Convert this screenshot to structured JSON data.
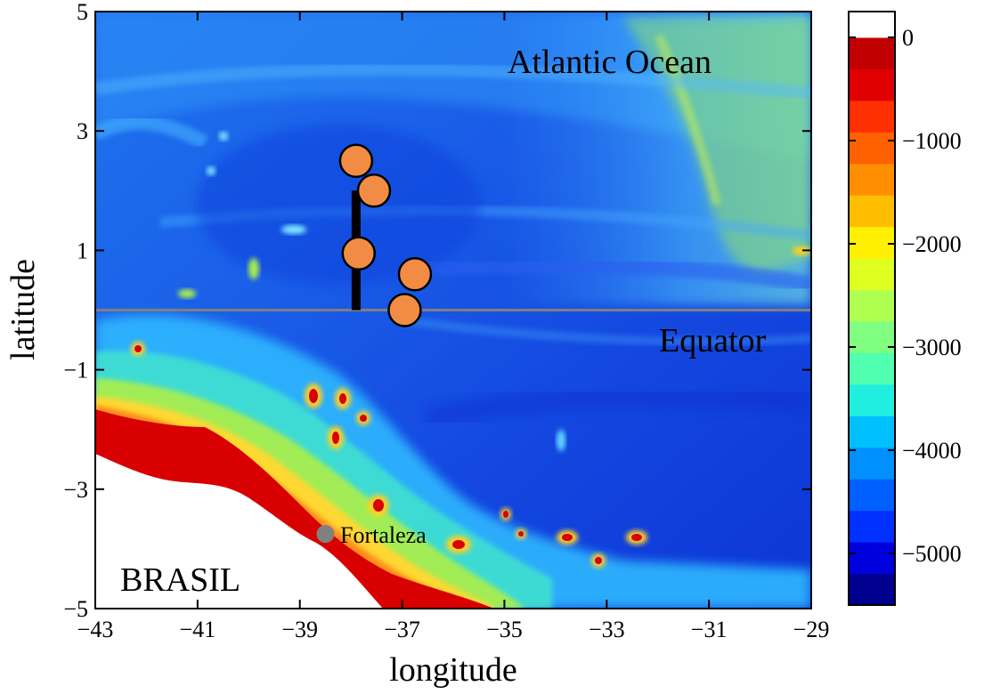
{
  "map": {
    "region": {
      "lon_range": [
        -43,
        -29
      ],
      "lat_range": [
        -5,
        5
      ]
    },
    "axes": {
      "xlabel": "longitude",
      "ylabel": "latitude",
      "xticks": [
        -43,
        -41,
        -39,
        -37,
        -35,
        -33,
        -31,
        -29
      ],
      "yticks": [
        -5,
        -3,
        -1,
        1,
        3,
        5
      ],
      "xtick_labels": [
        "−43",
        "−41",
        "−39",
        "−37",
        "−35",
        "−33",
        "−31",
        "−29"
      ],
      "ytick_labels": [
        "−5",
        "−3",
        "−1",
        "1",
        "3",
        "5"
      ]
    },
    "labels": {
      "ocean": "Atlantic Ocean",
      "equator": "Equator",
      "country": "BRASIL",
      "city": "Fortaleza"
    },
    "city_point": {
      "lon": -38.5,
      "lat": -3.75,
      "color": "#808080"
    },
    "equator_line": {
      "lat": 0,
      "color": "#7f7f7f"
    },
    "section_line": {
      "lon": -37.9,
      "lat_start": 0,
      "lat_end": 2.0,
      "color": "#000000"
    },
    "stations": [
      {
        "lon": -37.9,
        "lat": 2.5
      },
      {
        "lon": -37.55,
        "lat": 2.0
      },
      {
        "lon": -37.85,
        "lat": 0.95
      },
      {
        "lon": -36.75,
        "lat": 0.6
      },
      {
        "lon": -36.95,
        "lat": 0.0
      }
    ],
    "station_color": "#f28c45"
  },
  "colorbar": {
    "tick_values": [
      0,
      -1000,
      -2000,
      -3000,
      -4000,
      -5000
    ],
    "tick_labels": [
      "0",
      "−1000",
      "−2000",
      "−3000",
      "−4000",
      "−5000"
    ],
    "range": [
      -5500,
      250
    ],
    "colors": [
      "#00008f",
      "#0000df",
      "#0030ff",
      "#0060ff",
      "#0090ff",
      "#00c0ff",
      "#20efdf",
      "#50ffaf",
      "#80ff80",
      "#afff50",
      "#dfff20",
      "#ffef00",
      "#ffbf00",
      "#ff8f00",
      "#ff6000",
      "#ff3000",
      "#e00000",
      "#c00000",
      "#ffffff"
    ]
  }
}
